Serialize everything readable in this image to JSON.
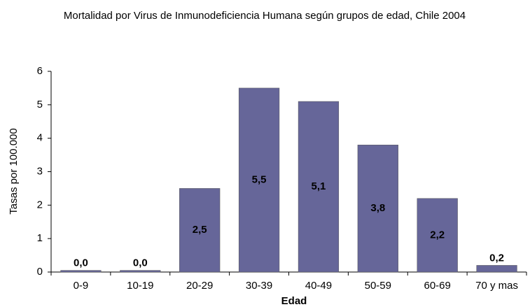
{
  "chart_data": {
    "type": "bar",
    "title": "Mortalidad por Virus de Inmunodeficiencia Humana según grupos de edad, Chile 2004",
    "x_label": "Edad",
    "y_label": "Tasas por 100.000",
    "categories": [
      "0-9",
      "10-19",
      "20-29",
      "30-39",
      "40-49",
      "50-59",
      "60-69",
      "70 y mas"
    ],
    "values": [
      0.05,
      0.05,
      2.5,
      5.5,
      5.1,
      3.8,
      2.2,
      0.2
    ],
    "value_labels": [
      "0,0",
      "0,0",
      "2,5",
      "5,5",
      "5,1",
      "3,8",
      "2,2",
      "0,2"
    ],
    "color": "#666699",
    "ylim": [
      0,
      6
    ],
    "yticks": [
      0,
      1,
      2,
      3,
      4,
      5,
      6
    ],
    "grid": false
  }
}
